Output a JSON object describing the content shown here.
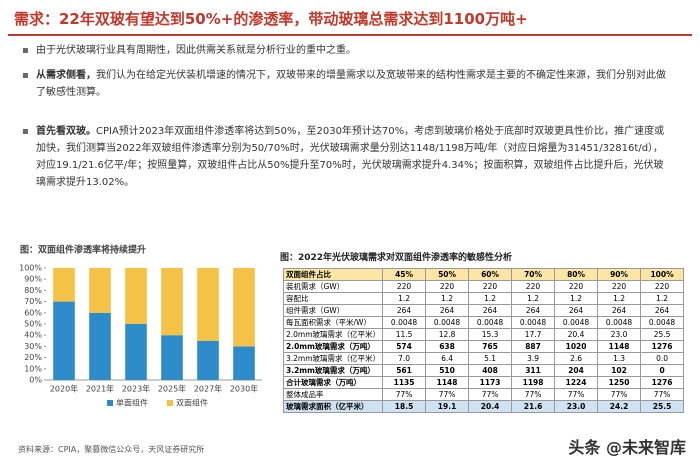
{
  "title": "需求：22年双玻有望达到50%+的渗透率，带动玻璃总需求达到1100万吨+",
  "bullets": [
    {
      "lead": "",
      "text": "由于光伏玻璃行业具有周期性，因此供需关系就是分析行业的重中之重。"
    },
    {
      "lead": "从需求侧看，",
      "text": "我们认为在给定光伏装机增速的情况下，双玻带来的增量需求以及宽玻带来的结构性需求是主要的不确定性来源，我们分别对此做了敏感性测算。"
    },
    {
      "lead": "首先看双玻。",
      "text": "CPIA预计2023年双面组件渗透率将达到50%，至2030年预计达70%，考虑到玻璃价格处于底部时双玻更具性价比，推广速度或加快，我们测算当2022年双玻组件渗透率分别为50/70%时，光伏玻璃需求量分别达1148/1198万吨/年（对应日熔量为31451/32816t/d），对应19.1/21.6亿平/年；按照量算，双玻组件占比从50%提升至70%时，光伏玻璃需求提升4.34%；按面积算，双玻组件占比提升后，光伏玻璃需求提升13.02%。"
    }
  ],
  "figure": {
    "type": "bar",
    "stacked": true,
    "title": "图：双面组件渗透率将持续提升",
    "categories": [
      "2020年",
      "2021年",
      "2023年",
      "2025年",
      "2027年",
      "2030年"
    ],
    "series": [
      {
        "name": "单面组件",
        "color": "#2e8bc9",
        "values": [
          70,
          60,
          50,
          40,
          35,
          30
        ]
      },
      {
        "name": "双面组件",
        "color": "#f4c244",
        "values": [
          30,
          40,
          50,
          60,
          65,
          70
        ]
      }
    ],
    "ylim": [
      0,
      100
    ],
    "yticks": [
      {
        "value": 0,
        "label": "0%"
      },
      {
        "value": 10,
        "label": "10%"
      },
      {
        "value": 20,
        "label": "20%"
      },
      {
        "value": 30,
        "label": "30%"
      },
      {
        "value": 40,
        "label": "40%"
      },
      {
        "value": 50,
        "label": "50%"
      },
      {
        "value": 60,
        "label": "60%"
      },
      {
        "value": 70,
        "label": "70%"
      },
      {
        "value": 80,
        "label": "80%"
      },
      {
        "value": 90,
        "label": "90%"
      },
      {
        "value": 100,
        "label": "100%"
      }
    ]
  },
  "table": {
    "title": "图：2022年光伏玻璃需求对双面组件渗透率的敏感性分析",
    "header": [
      "双面组件占比",
      "45%",
      "50%",
      "60%",
      "70%",
      "80%",
      "90%",
      "100%"
    ],
    "rows": [
      [
        "装机需求（GW）",
        "220",
        "220",
        "220",
        "220",
        "220",
        "220",
        "220"
      ],
      [
        "容配比",
        "1.2",
        "1.2",
        "1.2",
        "1.2",
        "1.2",
        "1.2",
        "1.2"
      ],
      [
        "组件需求（GW）",
        "264",
        "264",
        "264",
        "264",
        "264",
        "264",
        "264"
      ],
      [
        "每瓦面积需求（平米/W）",
        "0.0048",
        "0.0048",
        "0.0048",
        "0.0048",
        "0.0048",
        "0.0048",
        "0.0048"
      ],
      [
        "2.0mm玻璃需求（亿平米）",
        "11.5",
        "12.8",
        "15.3",
        "17.7",
        "20.4",
        "23.0",
        "25.5"
      ],
      [
        "2.0mm玻璃需求（万吨）",
        "574",
        "638",
        "765",
        "887",
        "1020",
        "1148",
        "1276"
      ],
      [
        "3.2mm玻璃需求（亿平米）",
        "7.0",
        "6.4",
        "5.1",
        "3.9",
        "2.6",
        "1.3",
        "0.0"
      ],
      [
        "3.2mm玻璃需求（万吨）",
        "561",
        "510",
        "408",
        "311",
        "204",
        "102",
        "0"
      ],
      [
        "合计玻璃需求（万吨）",
        "1135",
        "1148",
        "1173",
        "1198",
        "1224",
        "1250",
        "1276"
      ],
      [
        "整体成品率",
        "77%",
        "77%",
        "77%",
        "77%",
        "77%",
        "77%",
        "77%"
      ],
      [
        "玻璃需求面积（亿平米）",
        "18.5",
        "19.1",
        "20.4",
        "21.6",
        "23.0",
        "24.2",
        "25.5"
      ]
    ]
  },
  "source": "资料来源：CPIA，聚募微信公众号，天风证券研究所",
  "watermark": "头条 @未来智库"
}
